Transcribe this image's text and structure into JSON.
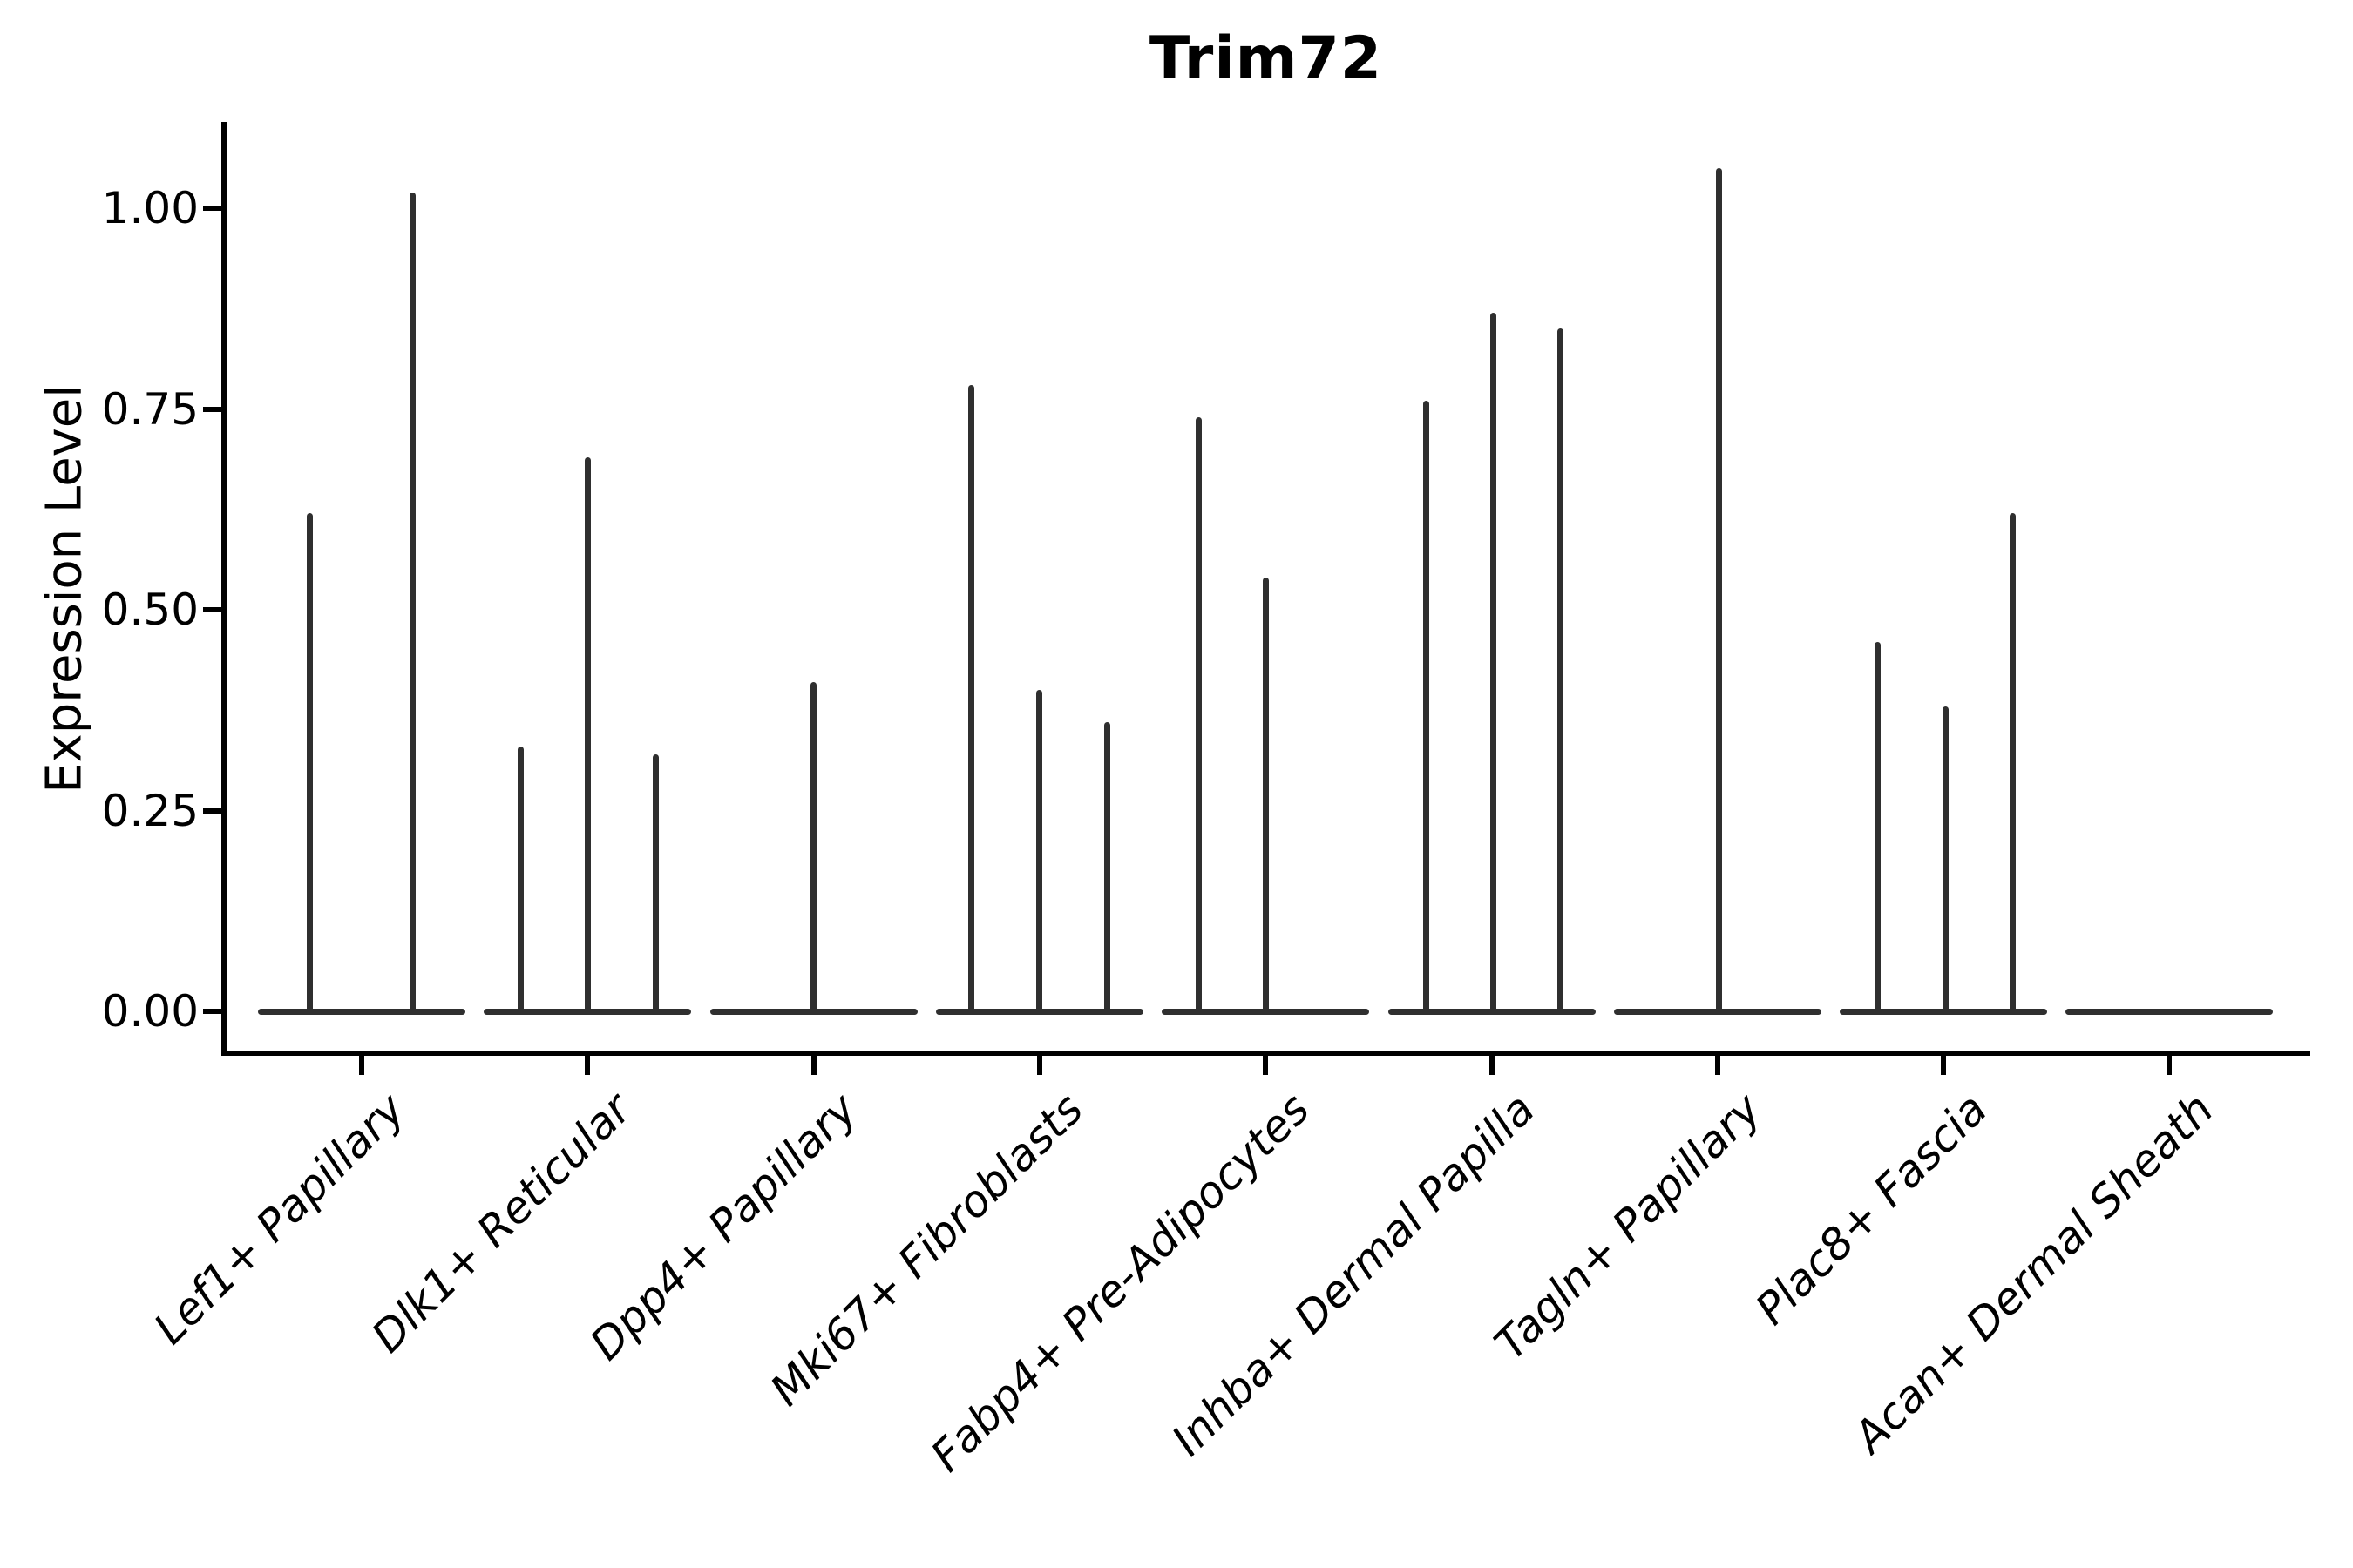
{
  "figure": {
    "colors": {
      "violin": "#2f2f2f",
      "axis": "#000000",
      "background": "#ffffff"
    }
  },
  "chart_data": {
    "type": "violin",
    "title": "Trim72",
    "xlabel": "",
    "ylabel": "Expression Level",
    "ylim": [
      -0.05,
      1.11
    ],
    "grid": false,
    "legend": false,
    "yticks": [
      {
        "value": 0.0,
        "label": "0.00"
      },
      {
        "value": 0.25,
        "label": "0.25"
      },
      {
        "value": 0.5,
        "label": "0.50"
      },
      {
        "value": 0.75,
        "label": "0.75"
      },
      {
        "value": 1.0,
        "label": "1.00"
      }
    ],
    "categories": [
      "Lef1+ Papillary",
      "Dlk1+ Reticular",
      "Dpp4+ Papillary",
      "Mki67+ Fibroblasts",
      "Fabp4+ Pre-Adipocytes",
      "Inhba+ Dermal Papilla",
      "Tagln+ Papillary",
      "Plac8+ Fascia",
      "Acan+ Dermal Sheath"
    ],
    "violins": [
      {
        "category": "Lef1+ Papillary",
        "spikes": [
          {
            "offset": -0.228,
            "max": 0.62
          },
          {
            "offset": 0.224,
            "max": 1.02
          }
        ]
      },
      {
        "category": "Dlk1+ Reticular",
        "spikes": [
          {
            "offset": -0.297,
            "max": 0.33
          },
          {
            "offset": 0.0,
            "max": 0.69
          },
          {
            "offset": 0.3,
            "max": 0.32
          }
        ]
      },
      {
        "category": "Dpp4+ Papillary",
        "spikes": [
          {
            "offset": 0.0,
            "max": 0.41
          }
        ]
      },
      {
        "category": "Mki67+ Fibroblasts",
        "spikes": [
          {
            "offset": -0.301,
            "max": 0.78
          },
          {
            "offset": 0.0,
            "max": 0.4
          },
          {
            "offset": 0.301,
            "max": 0.36
          }
        ]
      },
      {
        "category": "Fabp4+ Pre-Adipocytes",
        "spikes": [
          {
            "offset": -0.297,
            "max": 0.74
          },
          {
            "offset": 0.0,
            "max": 0.54
          }
        ]
      },
      {
        "category": "Inhba+ Dermal Papilla",
        "spikes": [
          {
            "offset": -0.291,
            "max": 0.76
          },
          {
            "offset": 0.006,
            "max": 0.87
          },
          {
            "offset": 0.303,
            "max": 0.85
          }
        ]
      },
      {
        "category": "Tagln+ Papillary",
        "spikes": [
          {
            "offset": 0.008,
            "max": 1.05
          }
        ]
      },
      {
        "category": "Plac8+ Fascia",
        "spikes": [
          {
            "offset": -0.293,
            "max": 0.46
          },
          {
            "offset": 0.008,
            "max": 0.38
          },
          {
            "offset": 0.308,
            "max": 0.62
          }
        ]
      },
      {
        "category": "Acan+ Dermal Sheath",
        "spikes": []
      }
    ]
  }
}
